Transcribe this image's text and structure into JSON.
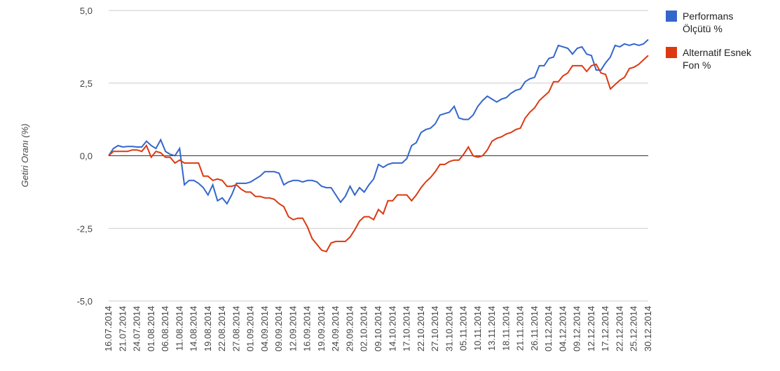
{
  "chart_data": {
    "type": "line",
    "y_label": "Getiri Oranı (%)",
    "categories": [
      "16.07.2014",
      null,
      null,
      "21.07.2014",
      null,
      null,
      "24.07.2014",
      null,
      null,
      "01.08.2014",
      null,
      null,
      "06.08.2014",
      null,
      null,
      "11.08.2014",
      null,
      null,
      "14.08.2014",
      null,
      null,
      "19.08.2014",
      null,
      null,
      "22.08.2014",
      null,
      null,
      "27.08.2014",
      null,
      null,
      "01.09.2014",
      null,
      null,
      "04.09.2014",
      null,
      null,
      "09.09.2014",
      null,
      null,
      "12.09.2014",
      null,
      null,
      "16.09.2014",
      null,
      null,
      "19.09.2014",
      null,
      null,
      "24.09.2014",
      null,
      null,
      "29.09.2014",
      null,
      null,
      "02.10.2014",
      null,
      null,
      "09.10.2014",
      null,
      null,
      "14.10.2014",
      null,
      null,
      "17.10.2014",
      null,
      null,
      "22.10.2014",
      null,
      null,
      "27.10.2014",
      null,
      null,
      "31.10.2014",
      null,
      null,
      "05.11.2014",
      null,
      null,
      "10.11.2014",
      null,
      null,
      "13.11.2014",
      null,
      null,
      "18.11.2014",
      null,
      null,
      "21.11.2014",
      null,
      null,
      "26.11.2014",
      null,
      null,
      "01.12.2014",
      null,
      null,
      "04.12.2014",
      null,
      null,
      "09.12.2014",
      null,
      null,
      "12.12.2014",
      null,
      null,
      "17.12.2014",
      null,
      null,
      "22.12.2014",
      null,
      null,
      "25.12.2014",
      null,
      null,
      "30.12.2014"
    ],
    "series": [
      {
        "name": "Performans Ölçütü %",
        "color": "#3366cc",
        "values": [
          0,
          0.25,
          0.35,
          0.3,
          0.32,
          0.32,
          0.3,
          0.3,
          0.5,
          0.35,
          0.25,
          0.55,
          0.15,
          0.05,
          0,
          0.25,
          -1,
          -0.85,
          -0.85,
          -0.95,
          -1.1,
          -1.35,
          -1,
          -1.55,
          -1.45,
          -1.65,
          -1.35,
          -0.95,
          -0.95,
          -0.95,
          -0.9,
          -0.8,
          -0.7,
          -0.55,
          -0.55,
          -0.55,
          -0.6,
          -1,
          -0.9,
          -0.85,
          -0.85,
          -0.9,
          -0.85,
          -0.85,
          -0.9,
          -1.05,
          -1.1,
          -1.1,
          -1.35,
          -1.6,
          -1.4,
          -1.05,
          -1.35,
          -1.1,
          -1.25,
          -1,
          -0.8,
          -0.3,
          -0.4,
          -0.3,
          -0.25,
          -0.25,
          -0.25,
          -0.1,
          0.35,
          0.45,
          0.8,
          0.9,
          0.95,
          1.1,
          1.4,
          1.45,
          1.5,
          1.7,
          1.3,
          1.25,
          1.25,
          1.4,
          1.7,
          1.9,
          2.05,
          1.95,
          1.85,
          1.95,
          2,
          2.15,
          2.25,
          2.3,
          2.55,
          2.65,
          2.7,
          3.1,
          3.1,
          3.35,
          3.4,
          3.8,
          3.75,
          3.7,
          3.5,
          3.7,
          3.75,
          3.5,
          3.45,
          2.95,
          2.95,
          3.2,
          3.4,
          3.8,
          3.75,
          3.85,
          3.8,
          3.85,
          3.8,
          3.85,
          4.0
        ]
      },
      {
        "name": "Alternatif Esnek Fon %",
        "color": "#dc3912",
        "values": [
          0,
          0.15,
          0.15,
          0.15,
          0.15,
          0.2,
          0.2,
          0.15,
          0.35,
          -0.05,
          0.15,
          0.1,
          -0.05,
          -0.05,
          -0.25,
          -0.15,
          -0.25,
          -0.25,
          -0.25,
          -0.25,
          -0.7,
          -0.7,
          -0.85,
          -0.8,
          -0.85,
          -1.05,
          -1.05,
          -1,
          -1.15,
          -1.25,
          -1.25,
          -1.4,
          -1.4,
          -1.45,
          -1.45,
          -1.5,
          -1.65,
          -1.75,
          -2.1,
          -2.2,
          -2.15,
          -2.15,
          -2.45,
          -2.85,
          -3.05,
          -3.25,
          -3.3,
          -3,
          -2.95,
          -2.95,
          -2.95,
          -2.8,
          -2.55,
          -2.25,
          -2.1,
          -2.1,
          -2.2,
          -1.85,
          -2,
          -1.55,
          -1.55,
          -1.35,
          -1.35,
          -1.35,
          -1.55,
          -1.35,
          -1.1,
          -0.9,
          -0.75,
          -0.55,
          -0.3,
          -0.3,
          -0.2,
          -0.15,
          -0.15,
          0.05,
          0.3,
          0,
          -0.05,
          0,
          0.2,
          0.5,
          0.6,
          0.65,
          0.75,
          0.8,
          0.9,
          0.95,
          1.3,
          1.5,
          1.65,
          1.9,
          2.05,
          2.2,
          2.55,
          2.55,
          2.75,
          2.85,
          3.1,
          3.1,
          3.1,
          2.9,
          3.1,
          3.15,
          2.85,
          2.8,
          2.3,
          2.45,
          2.6,
          2.7,
          3,
          3.05,
          3.15,
          3.3,
          3.45
        ]
      }
    ],
    "ylim": [
      -5,
      5
    ],
    "yticks": [
      {
        "value": -5,
        "label": "-5,0"
      },
      {
        "value": -2.5,
        "label": "-2,5"
      },
      {
        "value": 0,
        "label": "0,0"
      },
      {
        "value": 2.5,
        "label": "2,5"
      },
      {
        "value": 5,
        "label": "5,0"
      }
    ],
    "grid": true,
    "legend": "right",
    "xlabel_color": "#3a7d3a"
  }
}
